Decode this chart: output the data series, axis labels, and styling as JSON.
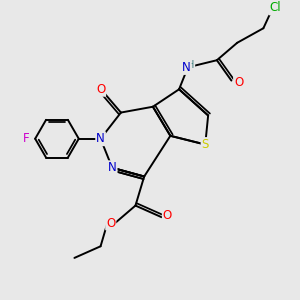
{
  "background_color": "#e8e8e8",
  "figsize": [
    3.0,
    3.0
  ],
  "dpi": 100,
  "atom_colors": {
    "C": "#000000",
    "N": "#0000cc",
    "O": "#ff0000",
    "S": "#cccc00",
    "F": "#cc00cc",
    "H": "#408080",
    "Cl": "#00aa00"
  },
  "bond_color": "#000000",
  "bond_width": 1.4,
  "font_size": 8.5
}
